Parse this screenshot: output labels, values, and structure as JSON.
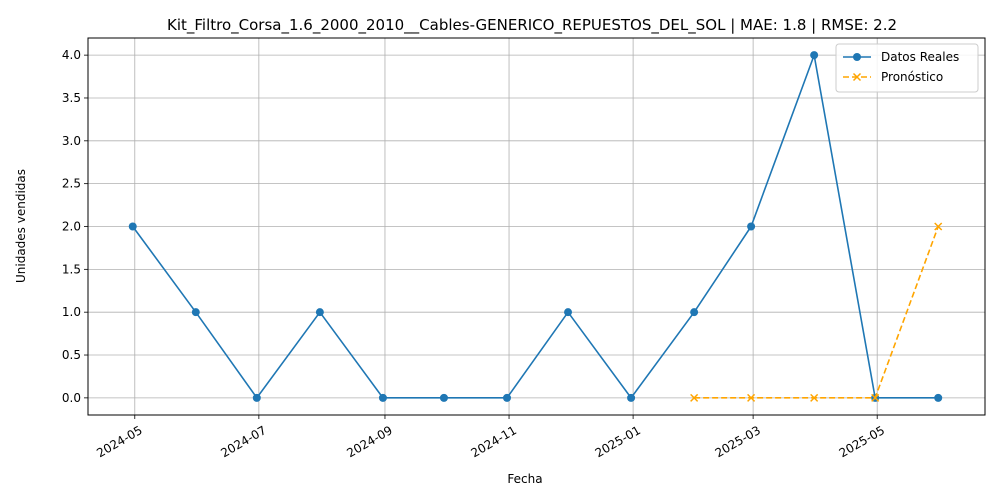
{
  "chart_data": {
    "type": "line",
    "title": "Kit_Filtro_Corsa_1.6_2000_2010__Cables-GENERICO_REPUESTOS_DEL_SOL | MAE: 1.8 | RMSE: 2.2",
    "xlabel": "Fecha",
    "ylabel": "Unidades vendidas",
    "ylim": [
      -0.2,
      4.2
    ],
    "xlim": [
      "2024-04-08",
      "2025-06-23"
    ],
    "grid": true,
    "legend_position": "top-right",
    "x_ticks": [
      "2024-05-01",
      "2024-07-01",
      "2024-09-01",
      "2024-11-01",
      "2025-01-01",
      "2025-03-01",
      "2025-05-01"
    ],
    "x_tick_labels": [
      "2024-05",
      "2024-07",
      "2024-09",
      "2024-11",
      "2025-01",
      "2025-03",
      "2025-05"
    ],
    "y_ticks": [
      0.0,
      0.5,
      1.0,
      1.5,
      2.0,
      2.5,
      3.0,
      3.5,
      4.0
    ],
    "y_tick_labels": [
      "0.0",
      "0.5",
      "1.0",
      "1.5",
      "2.0",
      "2.5",
      "3.0",
      "3.5",
      "4.0"
    ],
    "series": [
      {
        "name": "Datos Reales",
        "color": "#1f77b4",
        "style": "solid",
        "marker": "circle",
        "x": [
          "2024-04-30",
          "2024-05-31",
          "2024-06-30",
          "2024-07-31",
          "2024-08-31",
          "2024-09-30",
          "2024-10-31",
          "2024-11-30",
          "2024-12-31",
          "2025-01-31",
          "2025-02-28",
          "2025-03-31",
          "2025-04-30",
          "2025-05-31"
        ],
        "values": [
          2,
          1,
          0,
          1,
          0,
          0,
          0,
          1,
          0,
          1,
          2,
          4,
          0,
          0
        ]
      },
      {
        "name": "Pronóstico",
        "color": "#ffa500",
        "style": "dashed",
        "marker": "x",
        "x": [
          "2025-01-31",
          "2025-02-28",
          "2025-03-31",
          "2025-04-30",
          "2025-05-31"
        ],
        "values": [
          0,
          0,
          0,
          0,
          2
        ]
      }
    ]
  }
}
